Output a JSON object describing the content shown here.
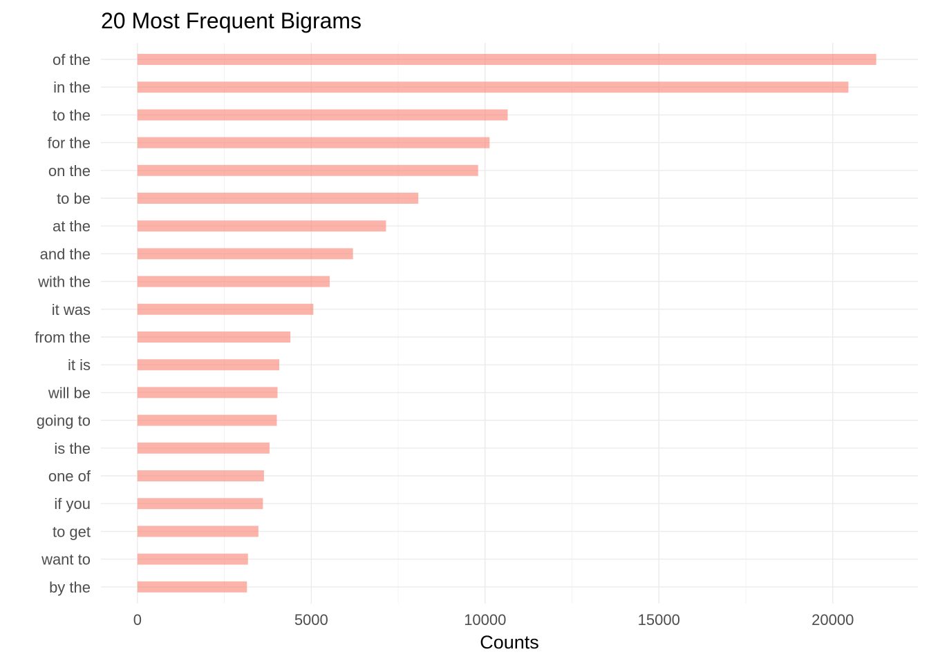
{
  "chart_data": {
    "type": "bar",
    "orientation": "horizontal",
    "title": "20 Most Frequent Bigrams",
    "xlabel": "Counts",
    "ylabel": "",
    "categories": [
      "of the",
      "in the",
      "to the",
      "for the",
      "on the",
      "to be",
      "at the",
      "and the",
      "with the",
      "it was",
      "from the",
      "it is",
      "will be",
      "going to",
      "is the",
      "one of",
      "if you",
      "to get",
      "want to",
      "by the"
    ],
    "values": [
      21250,
      20450,
      10650,
      10130,
      9800,
      8080,
      7150,
      6200,
      5530,
      5060,
      4400,
      4080,
      4030,
      4010,
      3800,
      3640,
      3610,
      3480,
      3180,
      3150
    ],
    "xlim": [
      -1050,
      22450
    ],
    "x_ticks": [
      0,
      5000,
      10000,
      15000,
      20000
    ],
    "x_minor_ticks": [
      2500,
      7500,
      12500,
      17500
    ],
    "x_tick_labels": [
      "0",
      "5000",
      "10000",
      "15000",
      "20000"
    ],
    "grid": true,
    "legend": "none",
    "colors": {
      "bar": "#fa8072",
      "bar_opacity": 0.6,
      "grid_major": "#ebebeb",
      "grid_minor": "#f3f3f3",
      "tick_text": "#4d4d4d",
      "title_text": "#000000"
    }
  }
}
